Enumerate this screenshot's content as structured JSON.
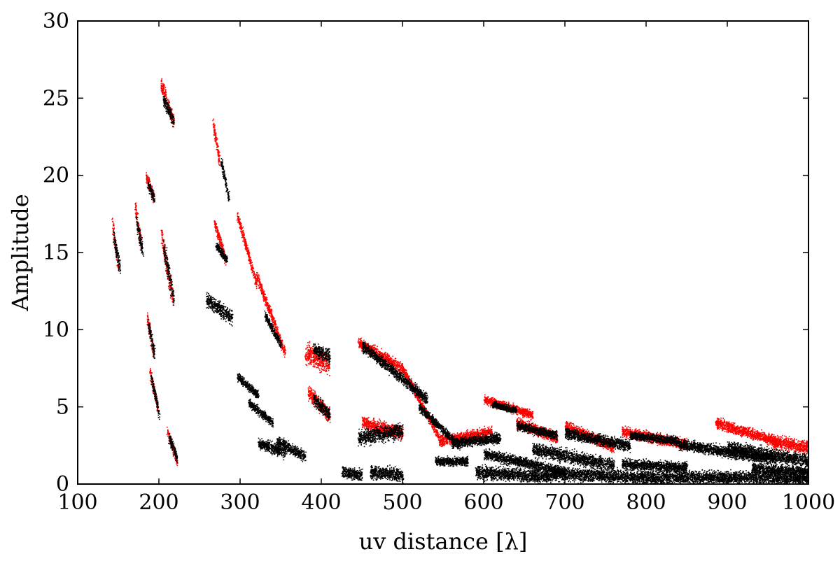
{
  "chart_data": {
    "type": "scatter",
    "xlabel": "uv distance [λ]",
    "ylabel": "Amplitude",
    "xlim": [
      100,
      1000
    ],
    "ylim": [
      0,
      30
    ],
    "xticks": [
      100,
      200,
      300,
      400,
      500,
      600,
      700,
      800,
      900,
      1000
    ],
    "yticks": [
      0,
      5,
      10,
      15,
      20,
      25,
      30
    ],
    "grid": false,
    "colors": {
      "red": "#ff0000",
      "black": "#000000"
    },
    "series": [
      {
        "color": "#ff0000",
        "segments": [
          {
            "x0": 142,
            "x1": 150,
            "y0": 17.0,
            "y1": 14.0,
            "spread": 0.8
          },
          {
            "x0": 170,
            "x1": 178,
            "y0": 18.0,
            "y1": 15.5,
            "spread": 0.8
          },
          {
            "x0": 184,
            "x1": 194,
            "y0": 20.0,
            "y1": 18.5,
            "spread": 0.6
          },
          {
            "x0": 185,
            "x1": 193,
            "y0": 11.0,
            "y1": 8.5,
            "spread": 0.7
          },
          {
            "x0": 188,
            "x1": 198,
            "y0": 7.5,
            "y1": 5.0,
            "spread": 0.5
          },
          {
            "x0": 202,
            "x1": 218,
            "y0": 26.0,
            "y1": 23.5,
            "spread": 0.7
          },
          {
            "x0": 203,
            "x1": 217,
            "y0": 16.0,
            "y1": 12.0,
            "spread": 1.0
          },
          {
            "x0": 210,
            "x1": 222,
            "y0": 3.5,
            "y1": 1.5,
            "spread": 0.5
          },
          {
            "x0": 266,
            "x1": 274,
            "y0": 23.5,
            "y1": 21.0,
            "spread": 0.6
          },
          {
            "x0": 268,
            "x1": 282,
            "y0": 17.0,
            "y1": 14.5,
            "spread": 0.5
          },
          {
            "x0": 296,
            "x1": 320,
            "y0": 17.5,
            "y1": 13.0,
            "spread": 0.5
          },
          {
            "x0": 320,
            "x1": 355,
            "y0": 13.5,
            "y1": 8.5,
            "spread": 0.5
          },
          {
            "x0": 380,
            "x1": 410,
            "y0": 8.5,
            "y1": 7.8,
            "spread": 1.0
          },
          {
            "x0": 383,
            "x1": 410,
            "y0": 6.0,
            "y1": 4.5,
            "spread": 0.7
          },
          {
            "x0": 445,
            "x1": 500,
            "y0": 9.2,
            "y1": 7.5,
            "spread": 0.5
          },
          {
            "x0": 500,
            "x1": 545,
            "y0": 7.5,
            "y1": 3.0,
            "spread": 0.4
          },
          {
            "x0": 450,
            "x1": 500,
            "y0": 4.0,
            "y1": 3.3,
            "spread": 0.6
          },
          {
            "x0": 545,
            "x1": 610,
            "y0": 2.8,
            "y1": 3.4,
            "spread": 0.5
          },
          {
            "x0": 600,
            "x1": 660,
            "y0": 5.5,
            "y1": 4.5,
            "spread": 0.4
          },
          {
            "x0": 640,
            "x1": 690,
            "y0": 4.0,
            "y1": 3.0,
            "spread": 0.5
          },
          {
            "x0": 700,
            "x1": 760,
            "y0": 3.8,
            "y1": 2.4,
            "spread": 0.5
          },
          {
            "x0": 770,
            "x1": 850,
            "y0": 3.4,
            "y1": 2.6,
            "spread": 0.5
          },
          {
            "x0": 885,
            "x1": 960,
            "y0": 4.0,
            "y1": 2.8,
            "spread": 0.5
          },
          {
            "x0": 955,
            "x1": 1000,
            "y0": 2.8,
            "y1": 2.4,
            "spread": 0.6
          }
        ]
      },
      {
        "color": "#000000",
        "segments": [
          {
            "x0": 144,
            "x1": 152,
            "y0": 16.0,
            "y1": 14.0,
            "spread": 0.8
          },
          {
            "x0": 172,
            "x1": 180,
            "y0": 17.0,
            "y1": 15.0,
            "spread": 0.8
          },
          {
            "x0": 186,
            "x1": 194,
            "y0": 19.5,
            "y1": 18.5,
            "spread": 0.5
          },
          {
            "x0": 186,
            "x1": 194,
            "y0": 10.5,
            "y1": 8.5,
            "spread": 0.6
          },
          {
            "x0": 190,
            "x1": 200,
            "y0": 7.0,
            "y1": 4.5,
            "spread": 0.5
          },
          {
            "x0": 205,
            "x1": 218,
            "y0": 25.0,
            "y1": 23.5,
            "spread": 0.6
          },
          {
            "x0": 205,
            "x1": 218,
            "y0": 15.5,
            "y1": 12.0,
            "spread": 1.0
          },
          {
            "x0": 212,
            "x1": 222,
            "y0": 3.0,
            "y1": 1.8,
            "spread": 0.5
          },
          {
            "x0": 258,
            "x1": 290,
            "y0": 12.0,
            "y1": 10.8,
            "spread": 0.7
          },
          {
            "x0": 276,
            "x1": 286,
            "y0": 21.0,
            "y1": 18.5,
            "spread": 0.5
          },
          {
            "x0": 270,
            "x1": 284,
            "y0": 15.5,
            "y1": 14.5,
            "spread": 0.4
          },
          {
            "x0": 296,
            "x1": 322,
            "y0": 7.0,
            "y1": 5.8,
            "spread": 0.4
          },
          {
            "x0": 310,
            "x1": 340,
            "y0": 5.3,
            "y1": 4.0,
            "spread": 0.4
          },
          {
            "x0": 322,
            "x1": 355,
            "y0": 2.7,
            "y1": 2.0,
            "spread": 0.5
          },
          {
            "x0": 345,
            "x1": 380,
            "y0": 2.8,
            "y1": 1.8,
            "spread": 0.5
          },
          {
            "x0": 330,
            "x1": 350,
            "y0": 11.0,
            "y1": 9.0,
            "spread": 0.4
          },
          {
            "x0": 390,
            "x1": 410,
            "y0": 8.8,
            "y1": 8.3,
            "spread": 0.6
          },
          {
            "x0": 390,
            "x1": 410,
            "y0": 5.5,
            "y1": 4.5,
            "spread": 0.6
          },
          {
            "x0": 425,
            "x1": 450,
            "y0": 0.8,
            "y1": 0.6,
            "spread": 0.5
          },
          {
            "x0": 460,
            "x1": 500,
            "y0": 0.8,
            "y1": 0.6,
            "spread": 0.6
          },
          {
            "x0": 445,
            "x1": 500,
            "y0": 3.0,
            "y1": 3.5,
            "spread": 0.7
          },
          {
            "x0": 450,
            "x1": 530,
            "y0": 9.0,
            "y1": 5.5,
            "spread": 0.5
          },
          {
            "x0": 520,
            "x1": 570,
            "y0": 5.0,
            "y1": 2.5,
            "spread": 0.4
          },
          {
            "x0": 540,
            "x1": 580,
            "y0": 1.5,
            "y1": 1.5,
            "spread": 0.4
          },
          {
            "x0": 560,
            "x1": 620,
            "y0": 2.7,
            "y1": 3.0,
            "spread": 0.5
          },
          {
            "x0": 590,
            "x1": 680,
            "y0": 0.8,
            "y1": 0.5,
            "spread": 0.6
          },
          {
            "x0": 600,
            "x1": 700,
            "y0": 2.0,
            "y1": 0.8,
            "spread": 0.5
          },
          {
            "x0": 610,
            "x1": 640,
            "y0": 5.2,
            "y1": 4.8,
            "spread": 0.3
          },
          {
            "x0": 640,
            "x1": 690,
            "y0": 3.8,
            "y1": 3.2,
            "spread": 0.4
          },
          {
            "x0": 660,
            "x1": 760,
            "y0": 2.3,
            "y1": 1.2,
            "spread": 0.6
          },
          {
            "x0": 700,
            "x1": 780,
            "y0": 3.3,
            "y1": 2.5,
            "spread": 0.5
          },
          {
            "x0": 680,
            "x1": 820,
            "y0": 0.7,
            "y1": 0.4,
            "spread": 0.6
          },
          {
            "x0": 770,
            "x1": 850,
            "y0": 1.3,
            "y1": 1.1,
            "spread": 0.5
          },
          {
            "x0": 780,
            "x1": 840,
            "y0": 3.2,
            "y1": 2.8,
            "spread": 0.4
          },
          {
            "x0": 820,
            "x1": 1000,
            "y0": 0.5,
            "y1": 0.4,
            "spread": 0.6
          },
          {
            "x0": 840,
            "x1": 960,
            "y0": 2.6,
            "y1": 1.6,
            "spread": 0.5
          },
          {
            "x0": 900,
            "x1": 1000,
            "y0": 2.4,
            "y1": 1.5,
            "spread": 0.6
          },
          {
            "x0": 930,
            "x1": 1000,
            "y0": 1.0,
            "y1": 0.8,
            "spread": 0.5
          }
        ]
      }
    ]
  }
}
